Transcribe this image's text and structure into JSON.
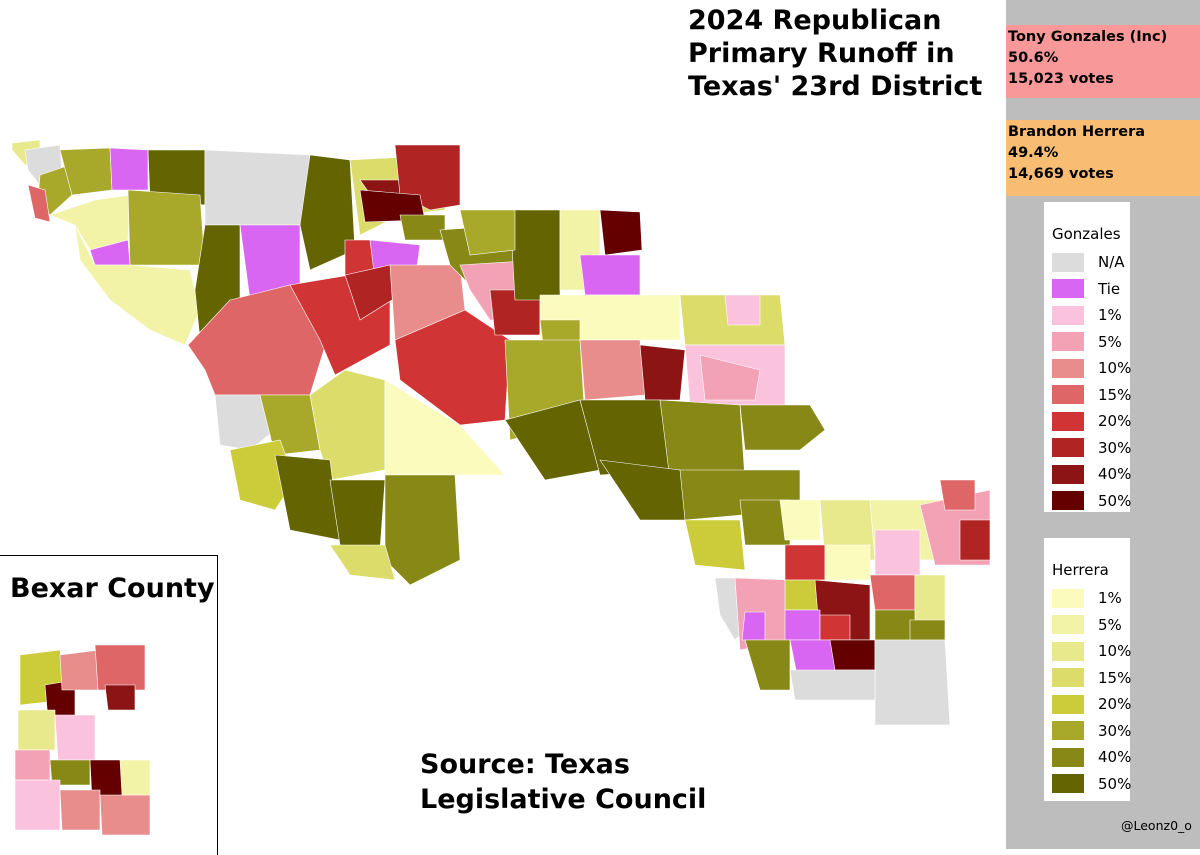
{
  "title": {
    "line1": "2024 Republican",
    "line2": "Primary Runoff in",
    "line3": "Texas' 23rd District"
  },
  "candidates": [
    {
      "name": "Tony Gonzales (Inc)",
      "pct": "50.6%",
      "votes": "15,023 votes",
      "color": "#f89898"
    },
    {
      "name": "Brandon Herrera",
      "pct": "49.4%",
      "votes": "14,669 votes",
      "color": "#f8bc73"
    }
  ],
  "legend_gonzales": {
    "title": "Gonzales",
    "items": [
      {
        "label": "N/A",
        "color": "#dcdcdc"
      },
      {
        "label": "Tie",
        "color": "#d966f2"
      },
      {
        "label": "1%",
        "color": "#fac2dc"
      },
      {
        "label": "5%",
        "color": "#f2a2b4"
      },
      {
        "label": "10%",
        "color": "#e88c8c"
      },
      {
        "label": "15%",
        "color": "#de6666"
      },
      {
        "label": "20%",
        "color": "#d13434"
      },
      {
        "label": "30%",
        "color": "#b02424"
      },
      {
        "label": "40%",
        "color": "#8c1414"
      },
      {
        "label": "50%",
        "color": "#640000"
      }
    ]
  },
  "legend_herrera": {
    "title": "Herrera",
    "items": [
      {
        "label": "1%",
        "color": "#fbfbbe"
      },
      {
        "label": "5%",
        "color": "#f3f3a8"
      },
      {
        "label": "10%",
        "color": "#e8e88c"
      },
      {
        "label": "15%",
        "color": "#dcdc6a"
      },
      {
        "label": "20%",
        "color": "#cccc3a"
      },
      {
        "label": "30%",
        "color": "#a8a82a"
      },
      {
        "label": "40%",
        "color": "#888816"
      },
      {
        "label": "50%",
        "color": "#646400"
      }
    ]
  },
  "inset_title": "Bexar County",
  "source": {
    "line1": "Source: Texas",
    "line2": "Legislative Council"
  },
  "credit": "@Leonz0_o"
}
